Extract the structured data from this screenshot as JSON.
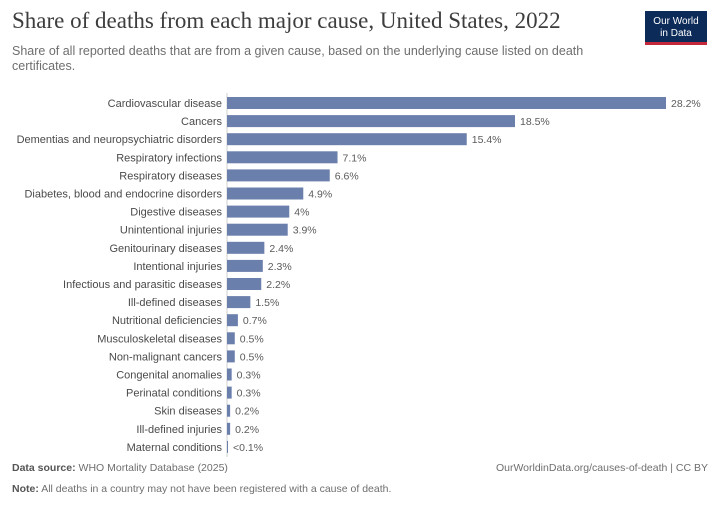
{
  "header": {
    "title": "Share of deaths from each major cause, United States, 2022",
    "subtitle": "Share of all reported deaths that are from a given cause, based on the underlying cause listed on death certificates.",
    "logo_line1": "Our World",
    "logo_line2": "in Data"
  },
  "footer": {
    "source_label": "Data source:",
    "source_text": "WHO Mortality Database (2025)",
    "credit": "OurWorldinData.org/causes-of-death | CC BY",
    "note_label": "Note:",
    "note_text": "All deaths in a country may not have been registered with a cause of death."
  },
  "colors": {
    "bar": "#6b7fad",
    "logo_bg": "#0c2b59",
    "logo_accent": "#c3273a"
  },
  "chart_data": {
    "type": "bar",
    "orientation": "horizontal",
    "categories": [
      "Cardiovascular disease",
      "Cancers",
      "Dementias and neuropsychiatric disorders",
      "Respiratory infections",
      "Respiratory diseases",
      "Diabetes, blood and endocrine disorders",
      "Digestive diseases",
      "Unintentional injuries",
      "Genitourinary diseases",
      "Intentional injuries",
      "Infectious and parasitic diseases",
      "Ill-defined diseases",
      "Nutritional deficiencies",
      "Musculoskeletal diseases",
      "Non-malignant cancers",
      "Congenital anomalies",
      "Perinatal conditions",
      "Skin diseases",
      "Ill-defined injuries",
      "Maternal conditions"
    ],
    "values": [
      28.2,
      18.5,
      15.4,
      7.1,
      6.6,
      4.9,
      4,
      3.9,
      2.4,
      2.3,
      2.2,
      1.5,
      0.7,
      0.5,
      0.5,
      0.3,
      0.3,
      0.2,
      0.2,
      0.05
    ],
    "value_labels": [
      "28.2%",
      "18.5%",
      "15.4%",
      "7.1%",
      "6.6%",
      "4.9%",
      "4%",
      "3.9%",
      "2.4%",
      "2.3%",
      "2.2%",
      "1.5%",
      "0.7%",
      "0.5%",
      "0.5%",
      "0.3%",
      "0.3%",
      "0.2%",
      "0.2%",
      "<0.1%"
    ],
    "xlim": [
      0,
      28.2
    ],
    "grid": false,
    "legend": "none"
  }
}
